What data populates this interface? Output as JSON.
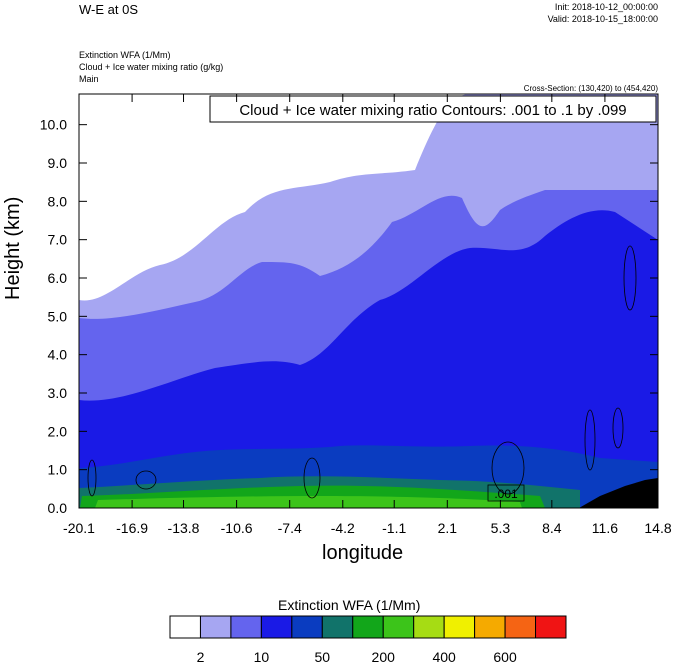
{
  "header": {
    "title": "W-E at 0S",
    "init": "Init: 2018-10-12_00:00:00",
    "valid": "Valid: 2018-10-15_18:00:00",
    "field1": "Extinction WFA   (1/Mm)",
    "field2": "Cloud + Ice water mixing ratio   (g/kg)",
    "field3": "Main",
    "cross_section": "Cross-Section: (130,420) to (454,420)"
  },
  "chart_data": {
    "type": "heatmap",
    "title": "W-E at 0S",
    "xlabel": "longitude",
    "ylabel": "Height (km)",
    "xlim": [
      -20.1,
      14.8
    ],
    "ylim": [
      0.0,
      10.8
    ],
    "x_ticks": [
      "-20.1",
      "-16.9",
      "-13.8",
      "-10.6",
      "-7.4",
      "-4.2",
      "-1.1",
      "2.1",
      "5.3",
      "8.4",
      "11.6",
      "14.8"
    ],
    "y_ticks": [
      "0.0",
      "1.0",
      "2.0",
      "3.0",
      "4.0",
      "5.0",
      "6.0",
      "7.0",
      "8.0",
      "9.0",
      "10.0"
    ],
    "contour_box": "Cloud + Ice water mixing ratio Contours: .001 to .1 by .099",
    "contour_label": ".001",
    "colorbar": {
      "title": "Extinction WFA  (1/Mm)",
      "colors": [
        "#ffffff",
        "#a6a6f2",
        "#6464ee",
        "#1a1ae6",
        "#0a3cc0",
        "#11736a",
        "#12a61a",
        "#3cc41a",
        "#a6dc14",
        "#f0f000",
        "#f5aa00",
        "#f56414",
        "#f01414"
      ],
      "tick_labels": [
        "2",
        "10",
        "50",
        "200",
        "400",
        "600"
      ]
    },
    "grid": false
  }
}
